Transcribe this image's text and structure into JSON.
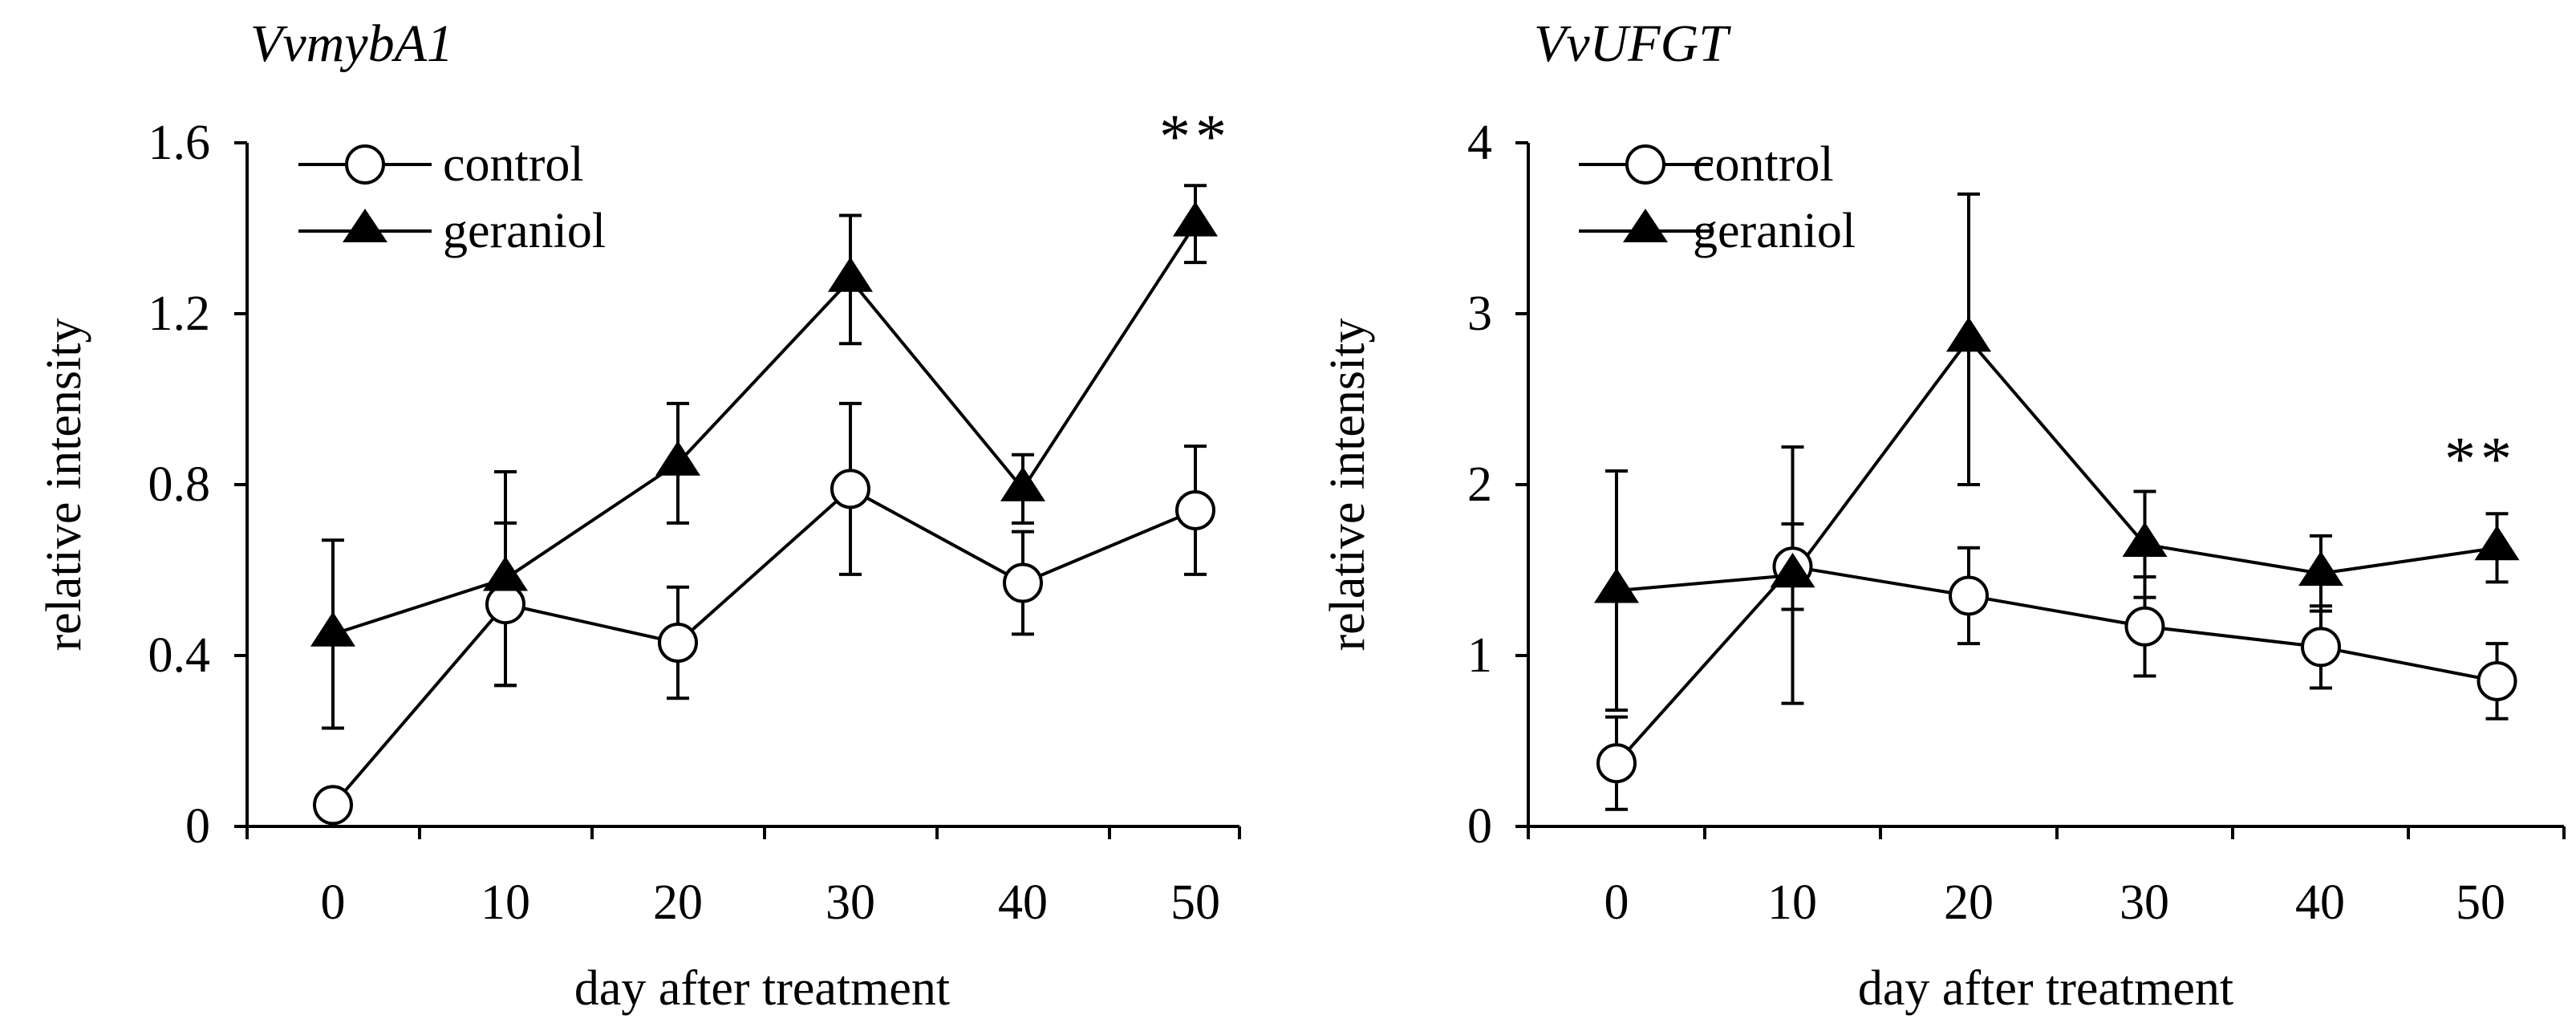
{
  "chart_data": [
    {
      "type": "line",
      "title": "VvmybA1",
      "xlabel": "day after treatment",
      "ylabel": "relative intensity",
      "x": [
        0,
        10,
        20,
        30,
        40,
        50
      ],
      "x_tick_labels": [
        "0",
        "10",
        "20",
        "30",
        "40",
        "50"
      ],
      "ylim": [
        0,
        1.6
      ],
      "y_ticks": [
        0,
        0.4,
        0.8,
        1.2,
        1.6
      ],
      "y_tick_labels": [
        "0",
        "0.4",
        "0.8",
        "1.2",
        "1.6"
      ],
      "legend_position": "top-left",
      "series": [
        {
          "name": "control",
          "marker": "open-circle",
          "values": [
            0.05,
            0.52,
            0.43,
            0.79,
            0.57,
            0.74
          ],
          "errors": [
            0.0,
            0.19,
            0.13,
            0.2,
            0.12,
            0.15
          ]
        },
        {
          "name": "geraniol",
          "marker": "filled-triangle",
          "values": [
            0.45,
            0.58,
            0.85,
            1.28,
            0.79,
            1.41
          ],
          "errors": [
            0.22,
            0.25,
            0.14,
            0.15,
            0.08,
            0.09
          ]
        }
      ],
      "annotations": [
        {
          "x": 50,
          "y": 1.6,
          "text": "**"
        }
      ]
    },
    {
      "type": "line",
      "title": "VvUFGT",
      "xlabel": "day after treatment",
      "ylabel": "relative intensity",
      "x": [
        0,
        10,
        20,
        30,
        40,
        50
      ],
      "x_tick_labels": [
        "0",
        "10",
        "20",
        "30",
        "40",
        "50"
      ],
      "ylim": [
        0,
        4
      ],
      "y_ticks": [
        0,
        1,
        2,
        3,
        4
      ],
      "y_tick_labels": [
        "0",
        "1",
        "2",
        "3",
        "4"
      ],
      "legend_position": "top-left",
      "series": [
        {
          "name": "control",
          "marker": "open-circle",
          "values": [
            0.37,
            1.52,
            1.35,
            1.17,
            1.05,
            0.85
          ],
          "errors": [
            0.27,
            0.25,
            0.28,
            0.29,
            0.24,
            0.22
          ]
        },
        {
          "name": "geraniol",
          "marker": "filled-triangle",
          "values": [
            1.38,
            1.47,
            2.85,
            1.65,
            1.48,
            1.63
          ],
          "errors": [
            0.7,
            0.75,
            0.85,
            0.31,
            0.22,
            0.2
          ]
        }
      ],
      "annotations": [
        {
          "x": 50,
          "y": 2.12,
          "text": "**"
        }
      ]
    }
  ]
}
